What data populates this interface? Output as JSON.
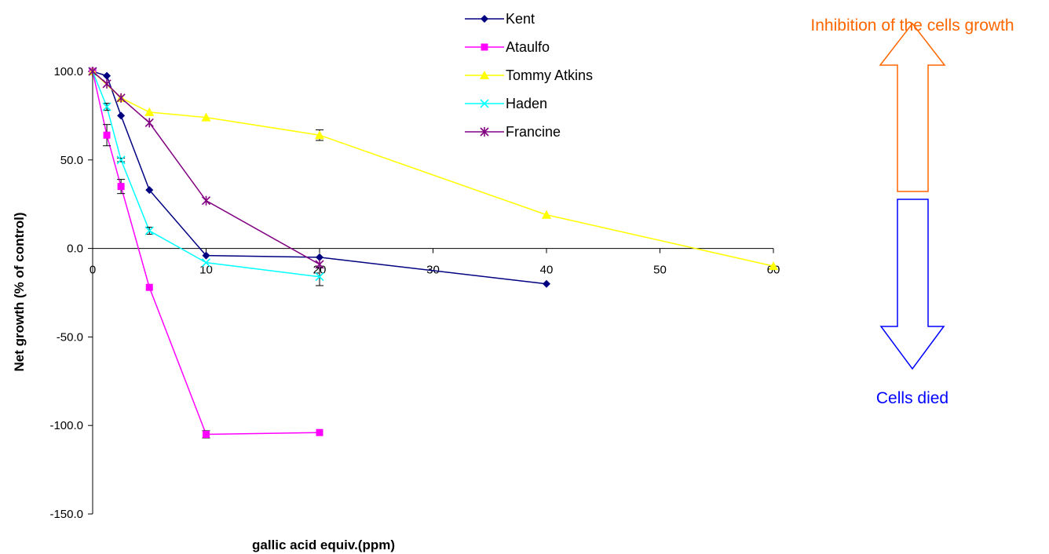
{
  "chart_data": {
    "type": "line",
    "title": "",
    "xlabel": "gallic acid equiv.(ppm)",
    "ylabel": "Net growth (% of control)",
    "xlim": [
      0,
      60
    ],
    "ylim": [
      -150,
      100
    ],
    "xticks": [
      0,
      10,
      20,
      30,
      40,
      50,
      60
    ],
    "yticks": [
      100,
      50,
      0,
      -50,
      -100,
      -150
    ],
    "ytick_labels": [
      "100.0",
      "50.0",
      "0.0",
      "-50.0",
      "-100.0",
      "-150.0"
    ],
    "grid": false,
    "legend_position": "top-center",
    "series": [
      {
        "name": "Kent",
        "color": "#000080",
        "marker": "diamond",
        "x": [
          0,
          1.25,
          2.5,
          5,
          10,
          20,
          40
        ],
        "y": [
          100,
          97.5,
          75,
          33,
          -4,
          -5,
          -20
        ]
      },
      {
        "name": "Ataulfo",
        "color": "#ff00ff",
        "marker": "square",
        "x": [
          0,
          1.25,
          2.5,
          5,
          10,
          20
        ],
        "y": [
          100,
          64,
          35,
          -22,
          -105,
          -104
        ],
        "err": [
          0,
          6,
          4,
          0,
          2,
          0
        ]
      },
      {
        "name": "Tommy Atkins",
        "color": "#ffff00",
        "marker": "triangle",
        "x": [
          0,
          2.5,
          5,
          10,
          20,
          40,
          60
        ],
        "y": [
          100,
          85,
          77,
          74,
          64,
          19,
          -10
        ],
        "err": [
          0,
          0,
          0,
          0,
          3,
          0,
          0
        ]
      },
      {
        "name": "Haden",
        "color": "#00ffff",
        "marker": "x",
        "x": [
          0,
          1.25,
          2.5,
          5,
          10,
          20
        ],
        "y": [
          100,
          80,
          50,
          10,
          -8,
          -16
        ],
        "err": [
          0,
          2,
          1,
          2,
          0,
          5
        ]
      },
      {
        "name": "Francine",
        "color": "#800080",
        "marker": "star",
        "x": [
          0,
          1.25,
          2.5,
          5,
          10,
          20
        ],
        "y": [
          100,
          93,
          85,
          71,
          27,
          -9
        ]
      }
    ]
  },
  "annotations": {
    "up_label": "Inhibition of the cells growth",
    "up_color": "#ff6600",
    "down_label": "Cells died",
    "down_color": "#0000ff"
  }
}
